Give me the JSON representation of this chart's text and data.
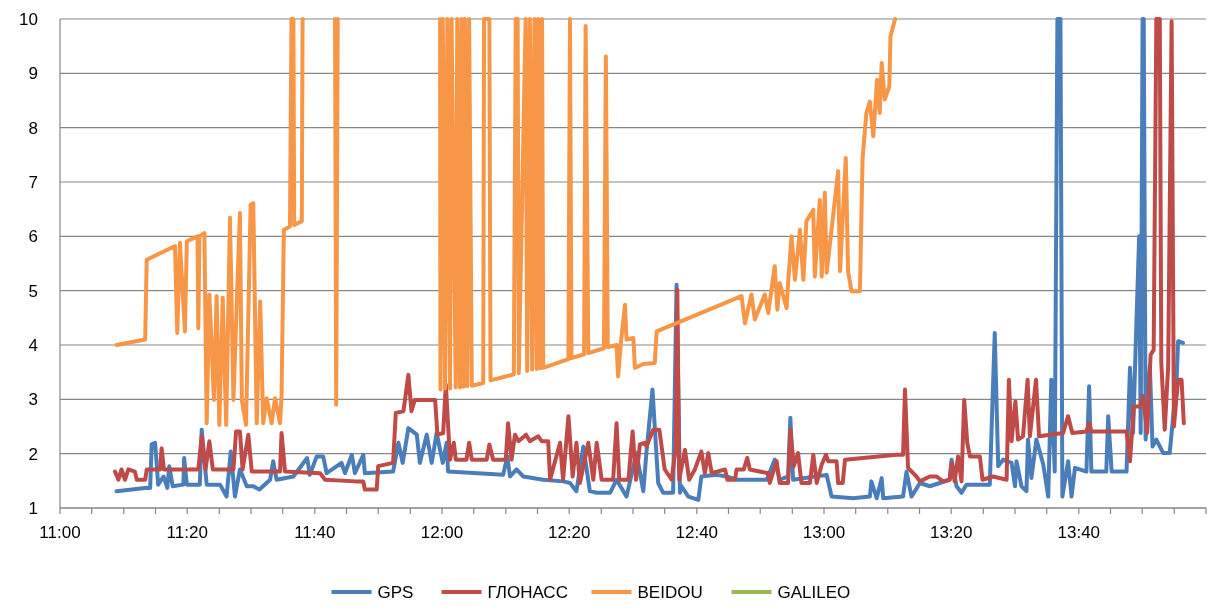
{
  "chart_data": {
    "type": "line",
    "xlim": [
      11,
      14
    ],
    "ylim": [
      1,
      10
    ],
    "xticks": [
      {
        "value": 11,
        "label": "11:00"
      },
      {
        "value": 11.083,
        "label": null
      },
      {
        "value": 11.167,
        "label": null
      },
      {
        "value": 11.25,
        "label": null
      },
      {
        "value": 11.333,
        "label": "11:20"
      },
      {
        "value": 11.417,
        "label": null
      },
      {
        "value": 11.5,
        "label": null
      },
      {
        "value": 11.583,
        "label": null
      },
      {
        "value": 11.667,
        "label": "11:40"
      },
      {
        "value": 11.75,
        "label": null
      },
      {
        "value": 11.833,
        "label": null
      },
      {
        "value": 11.917,
        "label": null
      },
      {
        "value": 12,
        "label": "12:00"
      },
      {
        "value": 12.083,
        "label": null
      },
      {
        "value": 12.167,
        "label": null
      },
      {
        "value": 12.25,
        "label": null
      },
      {
        "value": 12.333,
        "label": "12:20"
      },
      {
        "value": 12.417,
        "label": null
      },
      {
        "value": 12.5,
        "label": null
      },
      {
        "value": 12.583,
        "label": null
      },
      {
        "value": 12.667,
        "label": "12:40"
      },
      {
        "value": 12.75,
        "label": null
      },
      {
        "value": 12.833,
        "label": null
      },
      {
        "value": 12.917,
        "label": null
      },
      {
        "value": 13,
        "label": "13:00"
      },
      {
        "value": 13.083,
        "label": null
      },
      {
        "value": 13.167,
        "label": null
      },
      {
        "value": 13.25,
        "label": null
      },
      {
        "value": 13.333,
        "label": "13:20"
      },
      {
        "value": 13.417,
        "label": null
      },
      {
        "value": 13.5,
        "label": null
      },
      {
        "value": 13.583,
        "label": null
      },
      {
        "value": 13.667,
        "label": "13:40"
      },
      {
        "value": 13.75,
        "label": null
      },
      {
        "value": 13.833,
        "label": null
      },
      {
        "value": 13.917,
        "label": null
      },
      {
        "value": 14,
        "label": null
      }
    ],
    "yticks": [
      1,
      2,
      3,
      4,
      5,
      6,
      7,
      8,
      9,
      10
    ],
    "grid": "y",
    "legend": "bottom",
    "series": [
      {
        "name": "GPS",
        "color": "#4a7ebb",
        "x": [
          11.148,
          11.223,
          11.236,
          11.24,
          11.249,
          11.257,
          11.271,
          11.281,
          11.286,
          11.295,
          11.323,
          11.325,
          11.332,
          11.366,
          11.371,
          11.384,
          11.419,
          11.436,
          11.447,
          11.458,
          11.471,
          11.489,
          11.506,
          11.522,
          11.55,
          11.558,
          11.567,
          11.611,
          11.647,
          11.654,
          11.672,
          11.689,
          11.698,
          11.737,
          11.746,
          11.764,
          11.772,
          11.794,
          11.798,
          11.872,
          11.886,
          11.897,
          11.912,
          11.934,
          11.942,
          11.96,
          11.973,
          11.986,
          12.002,
          12.012,
          12.016,
          12.16,
          12.171,
          12.178,
          12.195,
          12.213,
          12.265,
          12.317,
          12.335,
          12.352,
          12.37,
          12.387,
          12.405,
          12.44,
          12.457,
          12.483,
          12.509,
          12.527,
          12.535,
          12.551,
          12.566,
          12.579,
          12.605,
          12.614,
          12.623,
          12.627,
          12.645,
          12.671,
          12.679,
          12.719,
          12.745,
          12.771,
          12.85,
          12.871,
          12.884,
          12.906,
          12.912,
          12.919,
          13.007,
          13.02,
          13.076,
          13.12,
          13.124,
          13.138,
          13.151,
          13.155,
          13.207,
          13.216,
          13.229,
          13.251,
          13.277,
          13.329,
          13.334,
          13.347,
          13.36,
          13.373,
          13.434,
          13.447,
          13.456,
          13.469,
          13.491,
          13.5,
          13.504,
          13.517,
          13.53,
          13.534,
          13.543,
          13.556,
          13.574,
          13.587,
          13.595,
          13.604,
          13.611,
          13.619,
          13.624,
          13.639,
          13.648,
          13.657,
          13.687,
          13.694,
          13.7,
          13.739,
          13.744,
          13.753,
          13.792,
          13.801,
          13.809,
          13.818,
          13.825,
          13.829,
          13.834,
          13.837,
          13.842,
          13.853,
          13.86,
          13.87,
          13.888,
          13.905,
          13.91,
          13.923,
          13.927,
          13.94
        ],
        "values": [
          1.31,
          1.37,
          1.37,
          2.17,
          2.2,
          1.43,
          1.58,
          1.37,
          1.77,
          1.4,
          1.43,
          1.92,
          1.43,
          1.43,
          2.44,
          1.43,
          1.43,
          1.21,
          2.04,
          1.21,
          1.71,
          1.4,
          1.4,
          1.34,
          1.52,
          1.86,
          1.52,
          1.58,
          1.92,
          1.61,
          1.95,
          1.95,
          1.64,
          1.83,
          1.64,
          1.98,
          1.64,
          1.98,
          1.64,
          1.67,
          2.2,
          1.83,
          2.47,
          2.35,
          1.83,
          2.35,
          1.83,
          2.38,
          1.83,
          2.2,
          1.67,
          1.61,
          1.95,
          1.58,
          1.71,
          1.58,
          1.52,
          1.49,
          1.46,
          1.31,
          2.13,
          1.31,
          1.28,
          1.28,
          1.52,
          1.21,
          2.01,
          1.31,
          2.01,
          3.18,
          1.46,
          1.28,
          1.28,
          5.11,
          1.28,
          1.4,
          1.21,
          1.15,
          1.58,
          1.61,
          1.58,
          1.52,
          1.52,
          1.89,
          1.52,
          1.58,
          2.66,
          1.52,
          1.61,
          1.21,
          1.18,
          1.21,
          1.49,
          1.18,
          1.55,
          1.18,
          1.21,
          1.67,
          1.21,
          1.46,
          1.4,
          1.52,
          1.89,
          1.4,
          1.28,
          1.43,
          1.43,
          4.22,
          1.77,
          1.89,
          1.83,
          1.4,
          1.86,
          1.4,
          1.31,
          2.26,
          1.55,
          2.26,
          1.8,
          1.21,
          3.36,
          1.67,
          10,
          10,
          1.21,
          1.86,
          1.21,
          1.74,
          1.67,
          3.24,
          1.67,
          1.67,
          2.69,
          1.67,
          1.67,
          3.58,
          2.38,
          4.44,
          6,
          2.38,
          10,
          10,
          2.26,
          3.61,
          2.13,
          2.26,
          2.01,
          2.01,
          2.38,
          3.36,
          4.07,
          4.04
        ]
      },
      {
        "name": "ГЛОНАСС",
        "color": "#be4b48",
        "x": [
          11.144,
          11.153,
          11.161,
          11.17,
          11.179,
          11.196,
          11.201,
          11.223,
          11.227,
          11.262,
          11.266,
          11.272,
          11.362,
          11.371,
          11.381,
          11.391,
          11.4,
          11.454,
          11.461,
          11.471,
          11.478,
          11.493,
          11.502,
          11.576,
          11.58,
          11.589,
          11.681,
          11.694,
          11.774,
          11.794,
          11.798,
          11.829,
          11.833,
          11.872,
          11.879,
          11.899,
          11.912,
          11.92,
          11.929,
          11.982,
          11.988,
          12.003,
          12.01,
          12.021,
          12.031,
          12.036,
          12.064,
          12.071,
          12.078,
          12.117,
          12.124,
          12.134,
          12.167,
          12.173,
          12.182,
          12.191,
          12.2,
          12.22,
          12.23,
          12.252,
          12.261,
          12.278,
          12.283,
          12.309,
          12.317,
          12.331,
          12.342,
          12.352,
          12.361,
          12.383,
          12.396,
          12.405,
          12.418,
          12.448,
          12.457,
          12.464,
          12.488,
          12.499,
          12.508,
          12.518,
          12.531,
          12.535,
          12.553,
          12.569,
          12.583,
          12.601,
          12.612,
          12.616,
          12.621,
          12.636,
          12.647,
          12.662,
          12.679,
          12.688,
          12.697,
          12.706,
          12.741,
          12.747,
          12.767,
          12.771,
          12.79,
          12.799,
          12.806,
          12.854,
          12.858,
          12.876,
          12.884,
          12.906,
          12.912,
          12.921,
          12.932,
          12.941,
          12.963,
          12.972,
          12.981,
          12.994,
          13.005,
          13.011,
          13.033,
          13.037,
          13.049,
          13.055,
          13.19,
          13.207,
          13.212,
          13.22,
          13.242,
          13.251,
          13.277,
          13.294,
          13.312,
          13.329,
          13.334,
          13.342,
          13.351,
          13.36,
          13.367,
          13.375,
          13.382,
          13.408,
          13.415,
          13.443,
          13.478,
          13.484,
          13.491,
          13.501,
          13.508,
          13.521,
          13.533,
          13.539,
          13.555,
          13.563,
          13.626,
          13.639,
          13.65,
          13.687,
          13.694,
          13.7,
          13.792,
          13.801,
          13.811,
          13.827,
          13.835,
          13.846,
          13.855,
          13.863,
          13.87,
          13.879,
          13.883,
          13.892,
          13.901,
          13.91,
          13.916,
          13.927,
          13.936,
          13.942
        ],
        "values": [
          1.67,
          1.52,
          1.71,
          1.52,
          1.71,
          1.67,
          1.52,
          1.52,
          1.71,
          1.71,
          2.1,
          1.71,
          1.71,
          2.32,
          1.71,
          2.23,
          1.71,
          1.71,
          2.41,
          2.41,
          1.71,
          2.35,
          1.67,
          1.67,
          2.38,
          1.67,
          1.64,
          1.52,
          1.49,
          1.49,
          1.34,
          1.34,
          1.77,
          1.83,
          2.75,
          2.78,
          3.45,
          2.78,
          2.99,
          2.99,
          2.35,
          2.38,
          3.27,
          1.89,
          2.2,
          1.89,
          1.89,
          2.2,
          1.89,
          1.89,
          2.17,
          1.89,
          1.89,
          2.56,
          1.89,
          2.35,
          2.23,
          2.35,
          2.23,
          2.32,
          2.23,
          2.23,
          1.52,
          2.2,
          1.52,
          2.69,
          1.58,
          2.2,
          1.46,
          2.2,
          1.52,
          2.2,
          1.52,
          1.52,
          2.56,
          1.52,
          1.52,
          2.41,
          1.52,
          2.17,
          2.2,
          2.13,
          2.44,
          2.44,
          1.71,
          1.52,
          2.1,
          5.02,
          1.52,
          2.07,
          1.52,
          1.71,
          2.04,
          1.64,
          2.01,
          1.64,
          1.71,
          1.52,
          1.52,
          1.71,
          1.71,
          1.92,
          1.71,
          1.64,
          1.46,
          1.86,
          1.46,
          1.46,
          2.44,
          1.77,
          2.01,
          1.46,
          1.46,
          1.98,
          1.46,
          1.8,
          1.98,
          1.86,
          1.86,
          1.46,
          1.46,
          1.89,
          1.98,
          1.98,
          3.18,
          1.74,
          1.58,
          1.49,
          1.58,
          1.58,
          1.49,
          1.52,
          1.83,
          1.49,
          1.95,
          1.49,
          2.99,
          2.2,
          1.95,
          1.95,
          1.52,
          1.58,
          1.52,
          3.36,
          2.23,
          2.96,
          2.26,
          2.32,
          3.36,
          2.32,
          3.36,
          2.32,
          2.38,
          2.69,
          2.38,
          2.41,
          2.56,
          2.41,
          2.41,
          1.86,
          2.87,
          2.87,
          3.06,
          2.38,
          3.82,
          3.91,
          10,
          10,
          3.67,
          2.44,
          3.61,
          9.96,
          2.5,
          3.36,
          3.36,
          2.56
        ]
      },
      {
        "name": "BEIDOU",
        "color": "#f79646",
        "x": [
          11.148,
          11.223,
          11.227,
          11.301,
          11.307,
          11.314,
          11.327,
          11.332,
          11.36,
          11.362,
          11.365,
          11.378,
          11.384,
          11.391,
          11.403,
          11.41,
          11.417,
          11.426,
          11.435,
          11.445,
          11.454,
          11.471,
          11.476,
          11.487,
          11.499,
          11.506,
          11.515,
          11.524,
          11.532,
          11.541,
          11.554,
          11.563,
          11.576,
          11.58,
          11.586,
          11.602,
          11.606,
          11.611,
          11.613,
          11.633,
          11.635,
          11.68,
          11.72,
          11.723,
          11.727,
          11.86,
          11.995,
          11.996,
          12.002,
          12.008,
          12.014,
          12.021,
          12.025,
          12.036,
          12.04,
          12.047,
          12.051,
          12.056,
          12.06,
          12.066,
          12.071,
          12.078,
          12.108,
          12.11,
          12.124,
          12.127,
          12.188,
          12.193,
          12.198,
          12.201,
          12.219,
          12.223,
          12.23,
          12.236,
          12.242,
          12.248,
          12.252,
          12.258,
          12.262,
          12.265,
          12.331,
          12.335,
          12.339,
          12.372,
          12.376,
          12.383,
          12.424,
          12.429,
          12.434,
          12.457,
          12.461,
          12.468,
          12.479,
          12.483,
          12.501,
          12.505,
          12.527,
          12.557,
          12.562,
          12.784,
          12.793,
          12.81,
          12.819,
          12.845,
          12.854,
          12.871,
          12.878,
          12.884,
          12.902,
          12.906,
          12.915,
          12.924,
          12.937,
          12.946,
          12.954,
          12.972,
          12.976,
          12.989,
          12.994,
          13.002,
          13.007,
          13.037,
          13.042,
          13.057,
          13.063,
          13.072,
          13.094,
          13.101,
          13.111,
          13.12,
          13.129,
          13.139,
          13.146,
          13.151,
          13.159,
          13.171,
          13.174,
          13.186
        ],
        "values": [
          4,
          4.1,
          5.57,
          5.82,
          4.22,
          5.88,
          4.25,
          5.91,
          6,
          4.31,
          6,
          6.06,
          2.56,
          4.93,
          2.99,
          4.9,
          2.53,
          4.87,
          2.53,
          6.34,
          2.99,
          6.43,
          2.99,
          2.53,
          6.58,
          6.61,
          2.56,
          4.8,
          2.56,
          3.02,
          2.56,
          3.02,
          2.56,
          3.06,
          6.12,
          6.18,
          10,
          10,
          6.21,
          6.28,
          10,
          null,
          10,
          2.9,
          10,
          null,
          10,
          3.18,
          10,
          3.2,
          10,
          3.2,
          10,
          3.22,
          10,
          3.22,
          10,
          3.23,
          10,
          3.24,
          10,
          3.25,
          3.3,
          10,
          10,
          3.35,
          3.46,
          10,
          10,
          3.48,
          10,
          3.52,
          10,
          3.55,
          10,
          3.56,
          10,
          3.57,
          10,
          3.58,
          3.74,
          10,
          3.76,
          3.83,
          9.87,
          3.85,
          3.94,
          9.31,
          3.96,
          4,
          3.42,
          4.02,
          4.74,
          4.1,
          4.13,
          3.58,
          3.65,
          3.67,
          4.25,
          4.9,
          4.4,
          4.93,
          4.47,
          4.93,
          4.59,
          5.45,
          4.65,
          5.14,
          4.68,
          5.14,
          6,
          5.2,
          6.12,
          5.2,
          6.28,
          6.49,
          5.26,
          6.67,
          5.26,
          6.8,
          5.33,
          7.2,
          5.36,
          7.44,
          5.36,
          4.99,
          4.99,
          7.44,
          8.27,
          8.48,
          7.84,
          8.88,
          8.27,
          9.19,
          8.52,
          8.76,
          9.68,
          10
        ]
      },
      {
        "name": "GALILEO",
        "color": "#98b954"
      }
    ]
  }
}
